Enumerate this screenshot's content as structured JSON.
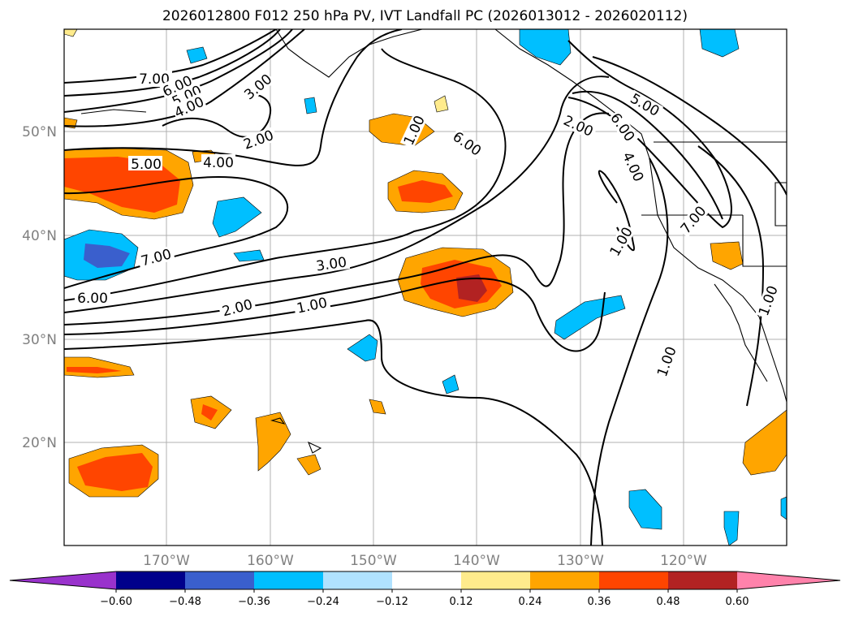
{
  "title": "2026012800 F012 250 hPa PV, IVT Landfall PC (2026013012 - 2026020112)",
  "lat_ticks": [
    "50°N",
    "40°N",
    "30°N",
    "20°N"
  ],
  "lon_ticks": [
    "170°W",
    "160°W",
    "150°W",
    "140°W",
    "130°W",
    "120°W"
  ],
  "contour_labels": [
    "7.00",
    "6.00",
    "5.00",
    "4.00",
    "3.00",
    "2.00",
    "1.00"
  ],
  "colorbar": {
    "tick_labels": [
      "−0.60",
      "−0.48",
      "−0.36",
      "−0.24",
      "−0.12",
      "0.12",
      "0.24",
      "0.36",
      "0.48",
      "0.60"
    ],
    "colors": [
      "#9932cc",
      "#00008b",
      "#3a5fcd",
      "#00bfff",
      "#b0e2ff",
      "#ffffff",
      "#ffeb8c",
      "#ffa500",
      "#ff4500",
      "#b22222",
      "#ff82ab"
    ]
  }
}
